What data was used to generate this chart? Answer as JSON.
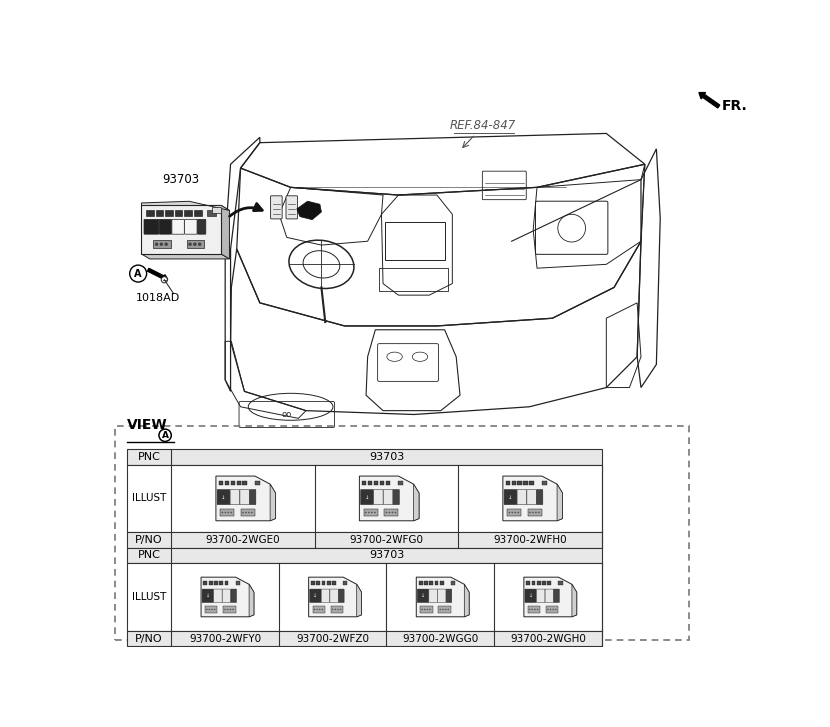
{
  "bg_color": "#ffffff",
  "fr_label": "FR.",
  "ref_label": "REF.84-847",
  "part_93703": "93703",
  "label_1018AD": "1018AD",
  "pnc_label": "PNC",
  "illust_label": "ILLUST",
  "pno_label": "P/NO",
  "pnc_value": "93703",
  "row1_pno": [
    "93700-2WGE0",
    "93700-2WFG0",
    "93700-2WFH0"
  ],
  "row2_pno": [
    "93700-2WFY0",
    "93700-2WFZ0",
    "93700-2WGG0",
    "93700-2WGH0"
  ],
  "text_color": "#000000",
  "line_color": "#333333",
  "dashed_color": "#666666",
  "gray_fill": "#e0e0e0",
  "white": "#ffffff"
}
